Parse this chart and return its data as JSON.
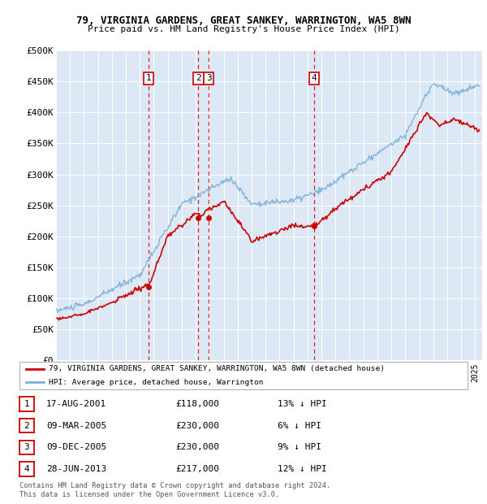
{
  "title1": "79, VIRGINIA GARDENS, GREAT SANKEY, WARRINGTON, WA5 8WN",
  "title2": "Price paid vs. HM Land Registry's House Price Index (HPI)",
  "ylabel_ticks": [
    "£0",
    "£50K",
    "£100K",
    "£150K",
    "£200K",
    "£250K",
    "£300K",
    "£350K",
    "£400K",
    "£450K",
    "£500K"
  ],
  "ylim": [
    0,
    500000
  ],
  "xlim_start": 1995.0,
  "xlim_end": 2025.5,
  "background_color": "#ffffff",
  "plot_bg_color": "#dce8f5",
  "grid_color": "#ffffff",
  "transactions": [
    {
      "num": 1,
      "date": "17-AUG-2001",
      "price": 118000,
      "pct": "13%",
      "x": 2001.63
    },
    {
      "num": 2,
      "date": "09-MAR-2005",
      "price": 230000,
      "pct": "6%",
      "x": 2005.19
    },
    {
      "num": 3,
      "date": "09-DEC-2005",
      "price": 230000,
      "pct": "9%",
      "x": 2005.94
    },
    {
      "num": 4,
      "date": "28-JUN-2013",
      "price": 217000,
      "pct": "12%",
      "x": 2013.49
    }
  ],
  "legend_property": "79, VIRGINIA GARDENS, GREAT SANKEY, WARRINGTON, WA5 8WN (detached house)",
  "legend_hpi": "HPI: Average price, detached house, Warrington",
  "footer": "Contains HM Land Registry data © Crown copyright and database right 2024.\nThis data is licensed under the Open Government Licence v3.0.",
  "property_color": "#cc0000",
  "hpi_color": "#7bafd4",
  "marker_box_color": "#cc0000",
  "vline_color": "#dd0000"
}
